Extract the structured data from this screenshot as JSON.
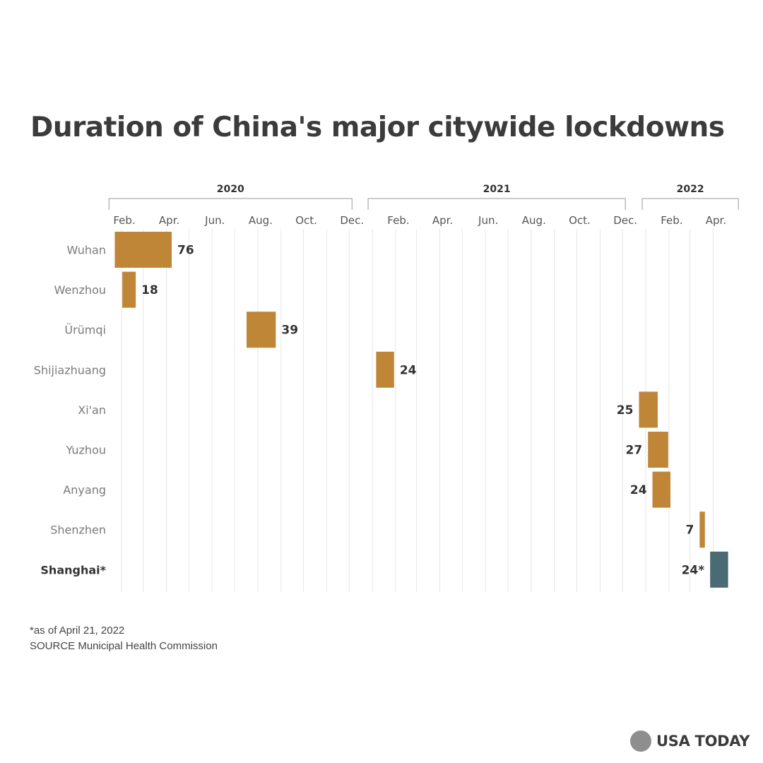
{
  "chart_data": {
    "type": "timeline-bar",
    "title": "Duration of China's major citywide lockdowns",
    "x_axis": {
      "unit": "date",
      "range": [
        "2020-01-20",
        "2022-05-04"
      ],
      "years": [
        {
          "label": "2020",
          "from": "2020-01-20",
          "to": "2020-12-01"
        },
        {
          "label": "2021",
          "from": "2020-12-31",
          "to": "2021-12-01"
        },
        {
          "label": "2022",
          "from": "2022-01-01",
          "to": "2022-05-01"
        }
      ],
      "tick_labels": [
        {
          "label": "Feb.",
          "date": "2020-02-01"
        },
        {
          "label": "Apr.",
          "date": "2020-04-01"
        },
        {
          "label": "Jun.",
          "date": "2020-06-01"
        },
        {
          "label": "Aug.",
          "date": "2020-08-01"
        },
        {
          "label": "Oct.",
          "date": "2020-10-01"
        },
        {
          "label": "Dec.",
          "date": "2020-12-01"
        },
        {
          "label": "Feb.",
          "date": "2021-02-01"
        },
        {
          "label": "Apr.",
          "date": "2021-04-01"
        },
        {
          "label": "Jun.",
          "date": "2021-06-01"
        },
        {
          "label": "Aug.",
          "date": "2021-08-01"
        },
        {
          "label": "Oct.",
          "date": "2021-10-01"
        },
        {
          "label": "Dec.",
          "date": "2021-12-01"
        },
        {
          "label": "Feb.",
          "date": "2022-02-01"
        },
        {
          "label": "Apr.",
          "date": "2022-04-01"
        }
      ],
      "gridlines": "monthly"
    },
    "series": [
      {
        "city": "Wuhan",
        "start": "2020-01-23",
        "days": 76,
        "label": "76",
        "highlight": false
      },
      {
        "city": "Wenzhou",
        "start": "2020-02-02",
        "days": 18,
        "label": "18",
        "highlight": false
      },
      {
        "city": "Ürümqi",
        "start": "2020-07-17",
        "days": 39,
        "label": "39",
        "highlight": false
      },
      {
        "city": "Shijiazhuang",
        "start": "2021-01-06",
        "days": 24,
        "label": "24",
        "highlight": false
      },
      {
        "city": "Xi'an",
        "start": "2021-12-23",
        "days": 25,
        "label": "25",
        "highlight": false
      },
      {
        "city": "Yuzhou",
        "start": "2022-01-04",
        "days": 27,
        "label": "27",
        "highlight": false
      },
      {
        "city": "Anyang",
        "start": "2022-01-10",
        "days": 24,
        "label": "24",
        "highlight": false
      },
      {
        "city": "Shenzhen",
        "start": "2022-03-14",
        "days": 7,
        "label": "7",
        "highlight": false
      },
      {
        "city": "Shanghai*",
        "start": "2022-03-28",
        "days": 24,
        "label": "24*",
        "highlight": true
      }
    ],
    "colors": {
      "bar": "#bf8638",
      "highlight": "#4a6b73",
      "grid": "#e6e6e6",
      "bracket": "#9a9a9a",
      "label": "#7a7a7a",
      "value": "#333333"
    }
  },
  "footnotes": {
    "note": "*as of April 21, 2022",
    "source": "SOURCE Municipal Health Commission"
  },
  "logo": {
    "text": "USA TODAY"
  }
}
